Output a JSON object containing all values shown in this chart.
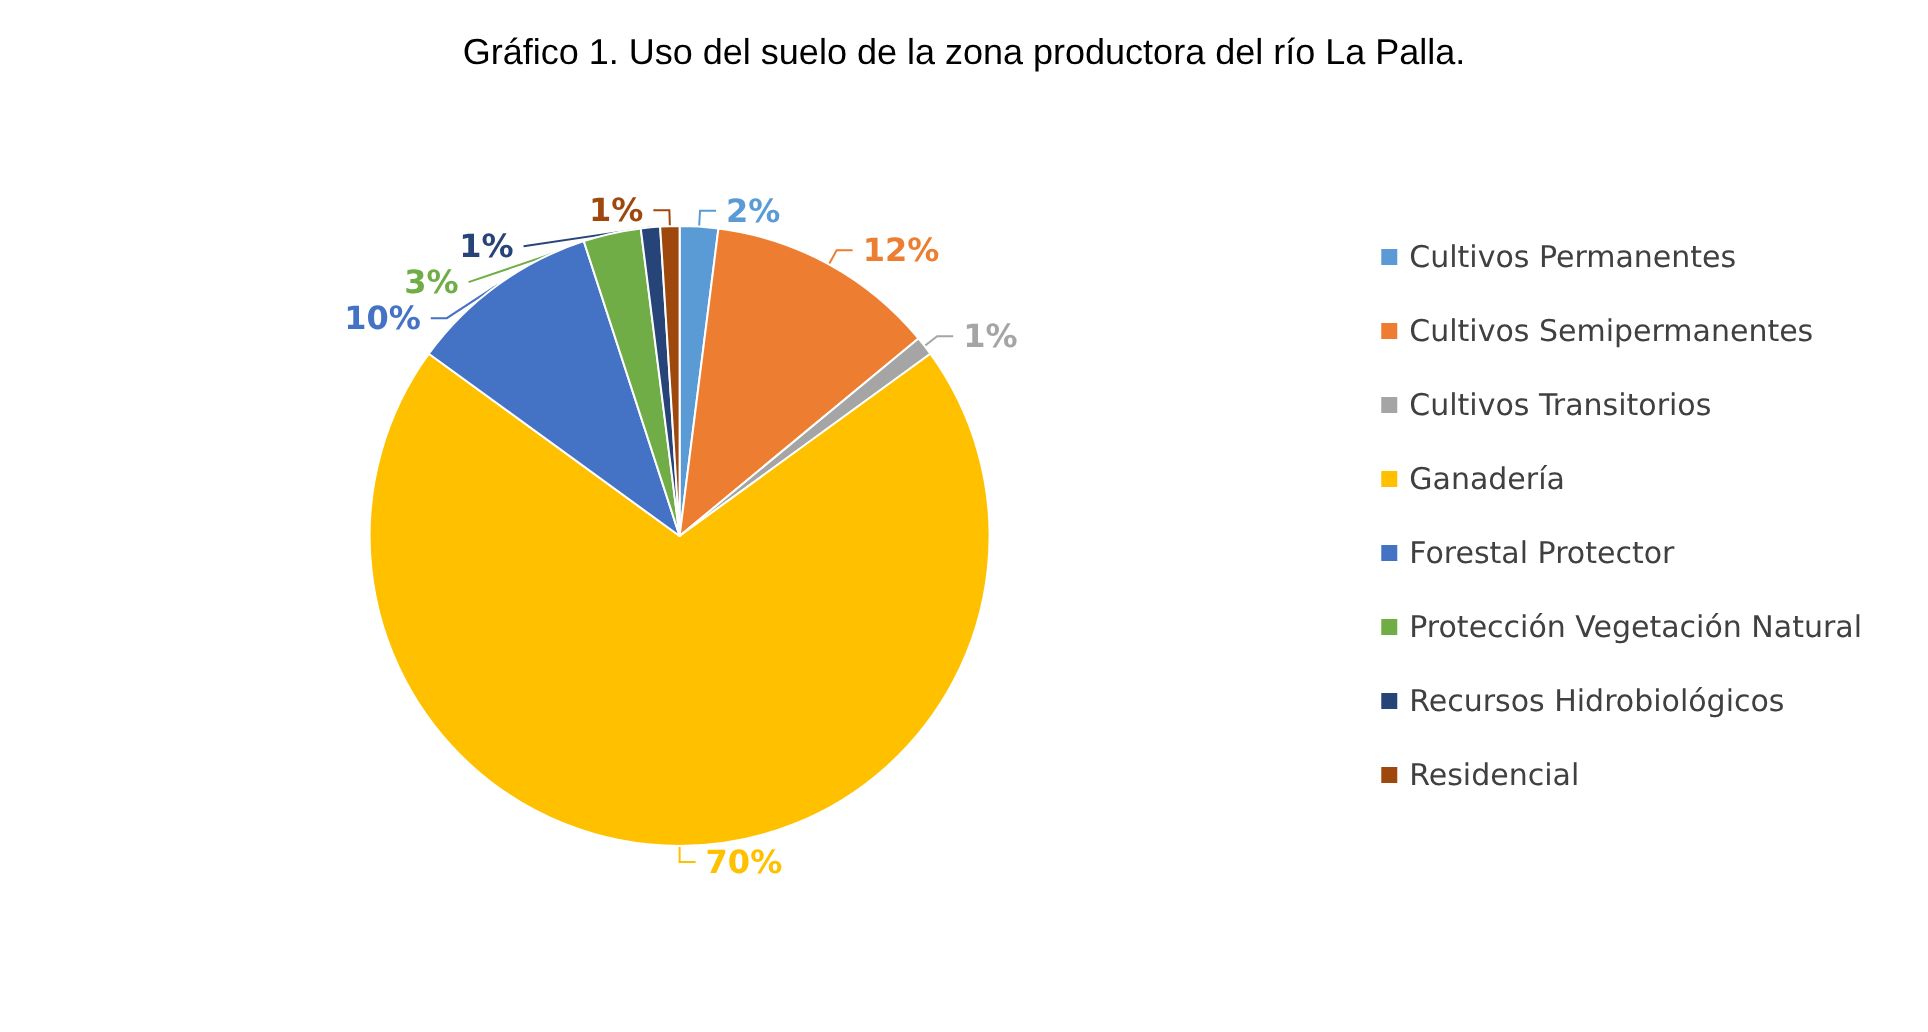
{
  "chart_data": {
    "type": "pie",
    "title": "Gráfico 1. Uso del suelo de la zona productora del río La Palla.",
    "categories": [
      "Cultivos Permanentes",
      "Cultivos Semipermanentes",
      "Cultivos Transitorios",
      "Ganadería",
      "Forestal Protector",
      "Protección Vegetación Natural",
      "Recursos Hidrobiológicos",
      "Residencial"
    ],
    "values": [
      2,
      12,
      1,
      70,
      10,
      3,
      1,
      1
    ],
    "colors": [
      "#5b9bd5",
      "#ed7d31",
      "#a5a5a5",
      "#ffc000",
      "#4472c4",
      "#70ad47",
      "#264478",
      "#9e480e"
    ],
    "value_labels": [
      "2%",
      "12%",
      "1%",
      "70%",
      "10%",
      "3%",
      "1%",
      "1%"
    ],
    "legend": "right"
  }
}
